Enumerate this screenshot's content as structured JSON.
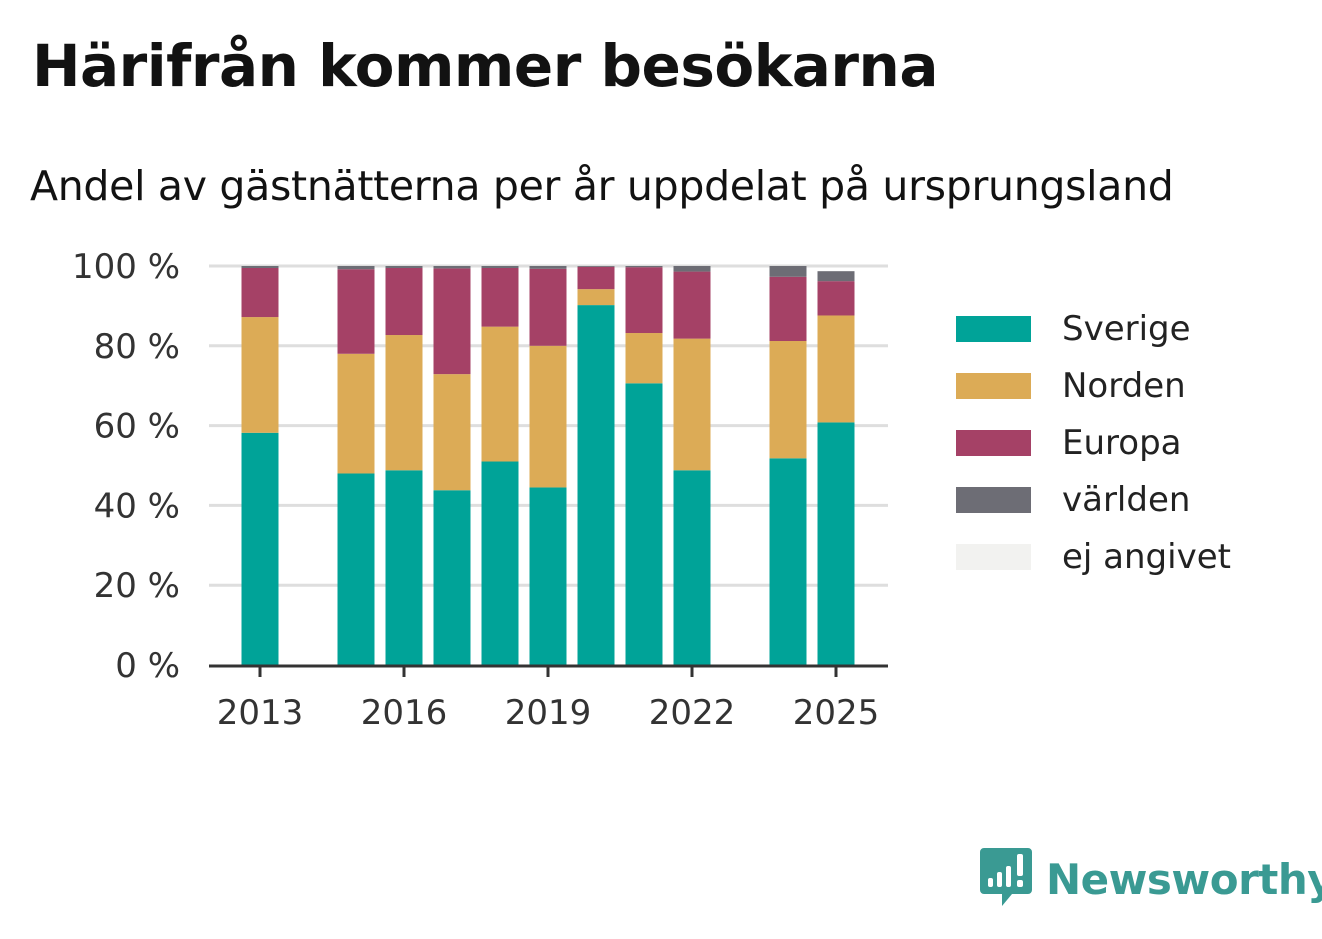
{
  "title": "Härifrån kommer besökarna",
  "subtitle": "Andel av gästnätterna per år uppdelat på ursprungsland",
  "brand": {
    "name": "Newsworthy",
    "icon": "newsworthy-logo-icon",
    "color": "#3a9a93"
  },
  "chart_data": {
    "type": "bar",
    "stacked": true,
    "categories": [
      "2013",
      "2014",
      "2015",
      "2016",
      "2017",
      "2018",
      "2019",
      "2020",
      "2021",
      "2022",
      "2023",
      "2024",
      "2025"
    ],
    "x_tick_labels": [
      "2013",
      "2016",
      "2019",
      "2022",
      "2025"
    ],
    "y_tick_labels": [
      "0 %",
      "20 %",
      "40 %",
      "60 %",
      "80 %",
      "100 %"
    ],
    "ylim": [
      0,
      100
    ],
    "grid": true,
    "legend_position": "right",
    "series": [
      {
        "name": "Sverige",
        "color": "#00a398",
        "values": [
          58.2,
          null,
          48.0,
          48.8,
          43.8,
          51.0,
          44.5,
          90.2,
          70.6,
          48.8,
          null,
          51.8,
          60.8
        ]
      },
      {
        "name": "Norden",
        "color": "#dcab56",
        "values": [
          29.0,
          null,
          30.0,
          33.9,
          29.1,
          33.8,
          35.5,
          4.0,
          12.6,
          33.0,
          null,
          29.4,
          26.8
        ]
      },
      {
        "name": "Europa",
        "color": "#a54166",
        "values": [
          12.3,
          null,
          21.2,
          16.8,
          26.5,
          14.7,
          19.3,
          5.6,
          16.5,
          16.8,
          null,
          16.1,
          8.6
        ]
      },
      {
        "name": "världen",
        "color": "#6d6d75",
        "values": [
          0.5,
          null,
          0.8,
          0.5,
          0.6,
          0.5,
          0.7,
          0.2,
          0.3,
          1.4,
          null,
          2.7,
          2.5
        ]
      },
      {
        "name": "ej angivet",
        "color": "#f2f2f0",
        "values": [
          0,
          null,
          0,
          0,
          0,
          0,
          0,
          0,
          0,
          0,
          null,
          0,
          0
        ]
      }
    ]
  }
}
